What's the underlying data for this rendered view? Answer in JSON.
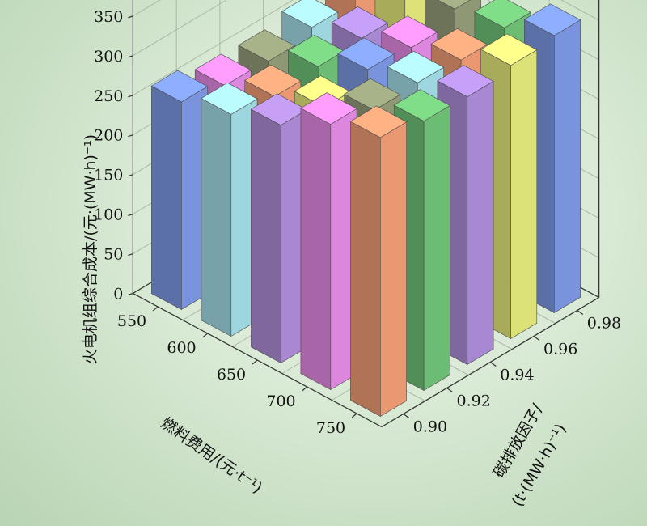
{
  "chart_data": {
    "type": "bar3d",
    "zlabel": "火电机组综合成本/(元·(MW·h)⁻¹)",
    "xlabel": "燃料费用/(元·t⁻¹)",
    "ylabel_line1": "碳排放因子/",
    "ylabel_line2": "(t·(MW·h)⁻¹)",
    "x_categories": [
      750,
      700,
      650,
      600,
      550
    ],
    "y_categories": [
      0.9,
      0.92,
      0.94,
      0.96,
      0.98
    ],
    "z_ticks": [
      0,
      50,
      100,
      150,
      200,
      250,
      300,
      350
    ],
    "z_tick_labels": [
      "0",
      "50",
      "100",
      "150",
      "200",
      "250",
      "300",
      "350"
    ],
    "x_tick_labels": [
      "750",
      "700",
      "650",
      "600",
      "550"
    ],
    "y_tick_labels": [
      "0.90",
      "0.92",
      "0.94",
      "0.96",
      "0.98"
    ],
    "zlim": [
      0,
      380
    ],
    "values": [
      [
        352,
        340,
        338,
        345,
        350
      ],
      [
        335,
        320,
        322,
        318,
        326
      ],
      [
        300,
        290,
        305,
        300,
        316
      ],
      [
        280,
        270,
        275,
        278,
        300
      ],
      [
        262,
        250,
        248,
        258,
        268
      ]
    ],
    "colors": [
      [
        "#f5a077",
        "#72c67a",
        "#b18fde",
        "#e8ee7d",
        "#7f9be8"
      ],
      [
        "#e98dea",
        "#97a07a",
        "#a6e1ec",
        "#f5a077",
        "#72c67a"
      ],
      [
        "#b28fdc",
        "#e8ee7d",
        "#7f9be8",
        "#e98dea",
        "#97a07a"
      ],
      [
        "#a6e1ec",
        "#f5a077",
        "#72c67a",
        "#b18fde",
        "#e8ee7d"
      ],
      [
        "#7f9be8",
        "#e98dea",
        "#97a07a",
        "#a6e1ec",
        "#f5a077"
      ]
    ]
  }
}
